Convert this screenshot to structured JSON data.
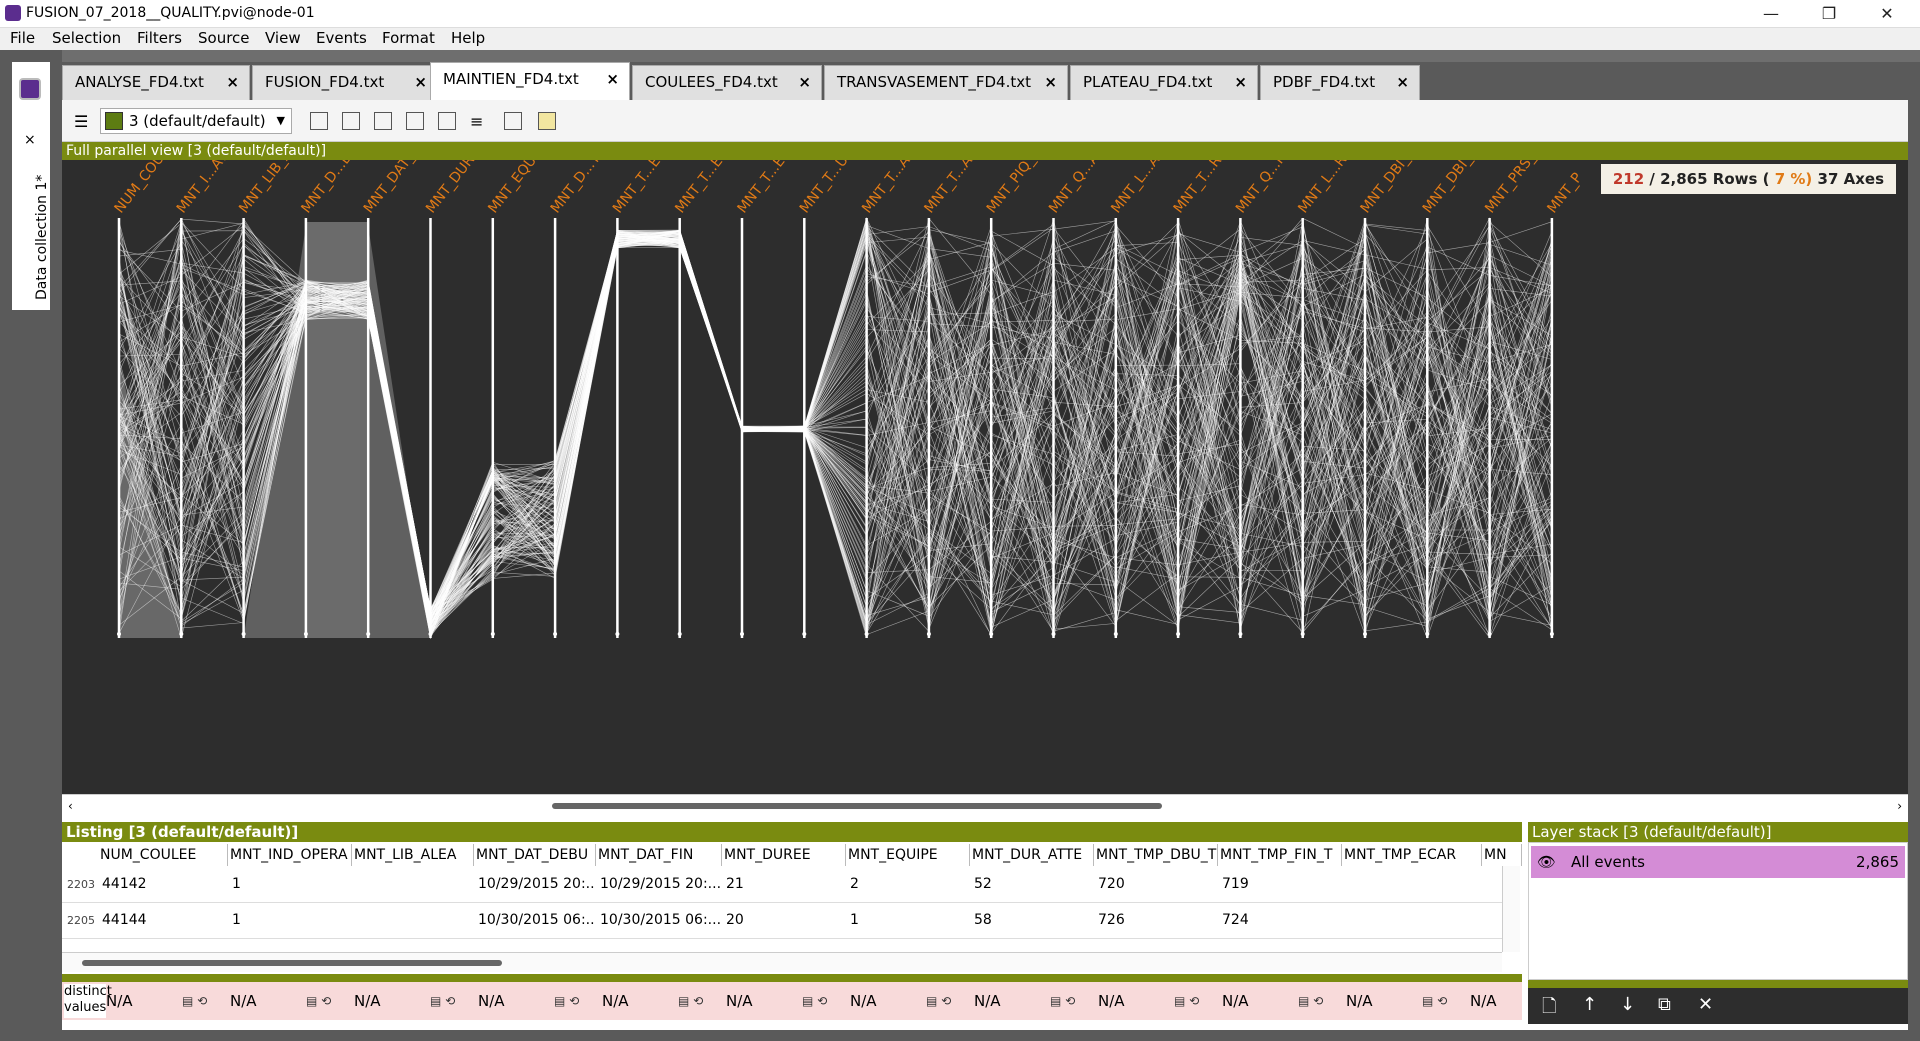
{
  "window": {
    "title": "FUSION_07_2018__QUALITY.pvi@node-01",
    "min": "—",
    "max": "❐",
    "close": "✕"
  },
  "menu": [
    "File",
    "Selection",
    "Filters",
    "Source",
    "View",
    "Events",
    "Format",
    "Help"
  ],
  "dock": {
    "label": "Data collection 1*",
    "close": "×"
  },
  "tabs": [
    {
      "label": "ANALYSE_FD4.txt",
      "close": "×"
    },
    {
      "label": "FUSION_FD4.txt",
      "close": "×"
    },
    {
      "label": "MAINTIEN_FD4.txt",
      "close": "×"
    },
    {
      "label": "COULEES_FD4.txt",
      "close": "×"
    },
    {
      "label": "TRANSVASEMENT_FD4.txt",
      "close": "×"
    },
    {
      "label": "PLATEAU_FD4.txt",
      "close": "×"
    },
    {
      "label": "PDBF_FD4.txt",
      "close": "×"
    }
  ],
  "active_tab": 2,
  "toolbar": {
    "layer": "3 (default/default)",
    "layer_color": "#5d7c12"
  },
  "parallel_view": {
    "title": "Full parallel view [3 (default/default)]",
    "stats": {
      "selected": "212",
      "sep": " / ",
      "rows": "2,865 Rows (",
      "pct": "  7 %)",
      "axes": "37 Axes"
    },
    "axes": [
      "NUM_COULEE",
      "MNT_I...ATION",
      "MNT_LIB_ALEA",
      "MNT_D...DEBUT",
      "MNT_DAT_FIN",
      "MNT_DUREE",
      "MNT_EQUIPE",
      "MNT_D...TENTE",
      "MNT_T...EMENT",
      "MNT_T...EMENT",
      "MNT_T...ECART",
      "MNT_T...ULLES",
      "MNT_T...ANTRT",
      "MNT_T...ANTRT",
      "MNT_PIQ_SOLE",
      "MNT_Q...ANTRT",
      "MNT_L...ANTRT",
      "MNT_T...RETRT",
      "MNT_Q...RETR",
      "MNT_L...RETR",
      "MNT_DBI_AR",
      "MNT_DBI_CL",
      "MNT_PRS_AR",
      "MNT_P"
    ],
    "line_color": "#ffffff",
    "label_color": "#e07a16"
  },
  "listing": {
    "title": "Listing [3 (default/default)]",
    "columns": [
      "NUM_COULEE",
      "MNT_IND_OPERA",
      "MNT_LIB_ALEA",
      "MNT_DAT_DEBU",
      "MNT_DAT_FIN",
      "MNT_DUREE",
      "MNT_EQUIPE",
      "MNT_DUR_ATTE",
      "MNT_TMP_DBU_T",
      "MNT_TMP_FIN_T",
      "MNT_TMP_ECAR",
      "MN"
    ],
    "rows": [
      {
        "index": "2203",
        "cells": [
          "44142",
          "1",
          "",
          "10/29/2015 20:...",
          "10/29/2015 20:...",
          "21",
          "2",
          "52",
          "720",
          "719",
          "",
          ""
        ]
      },
      {
        "index": "2205",
        "cells": [
          "44144",
          "1",
          "",
          "10/30/2015 06:...",
          "10/30/2015 06:...",
          "20",
          "1",
          "58",
          "726",
          "724",
          "",
          ""
        ]
      }
    ],
    "stats_label": "distinct values",
    "stats_value": "N/A",
    "stats_icons": "▤ ⟲"
  },
  "layer_stack": {
    "title": "Layer stack [3 (default/default)]",
    "layer": {
      "name": "All events",
      "count": "2,865",
      "eye": "👁"
    },
    "buttons": [
      "🗋",
      "↑",
      "↓",
      "⧉",
      "✕"
    ]
  }
}
